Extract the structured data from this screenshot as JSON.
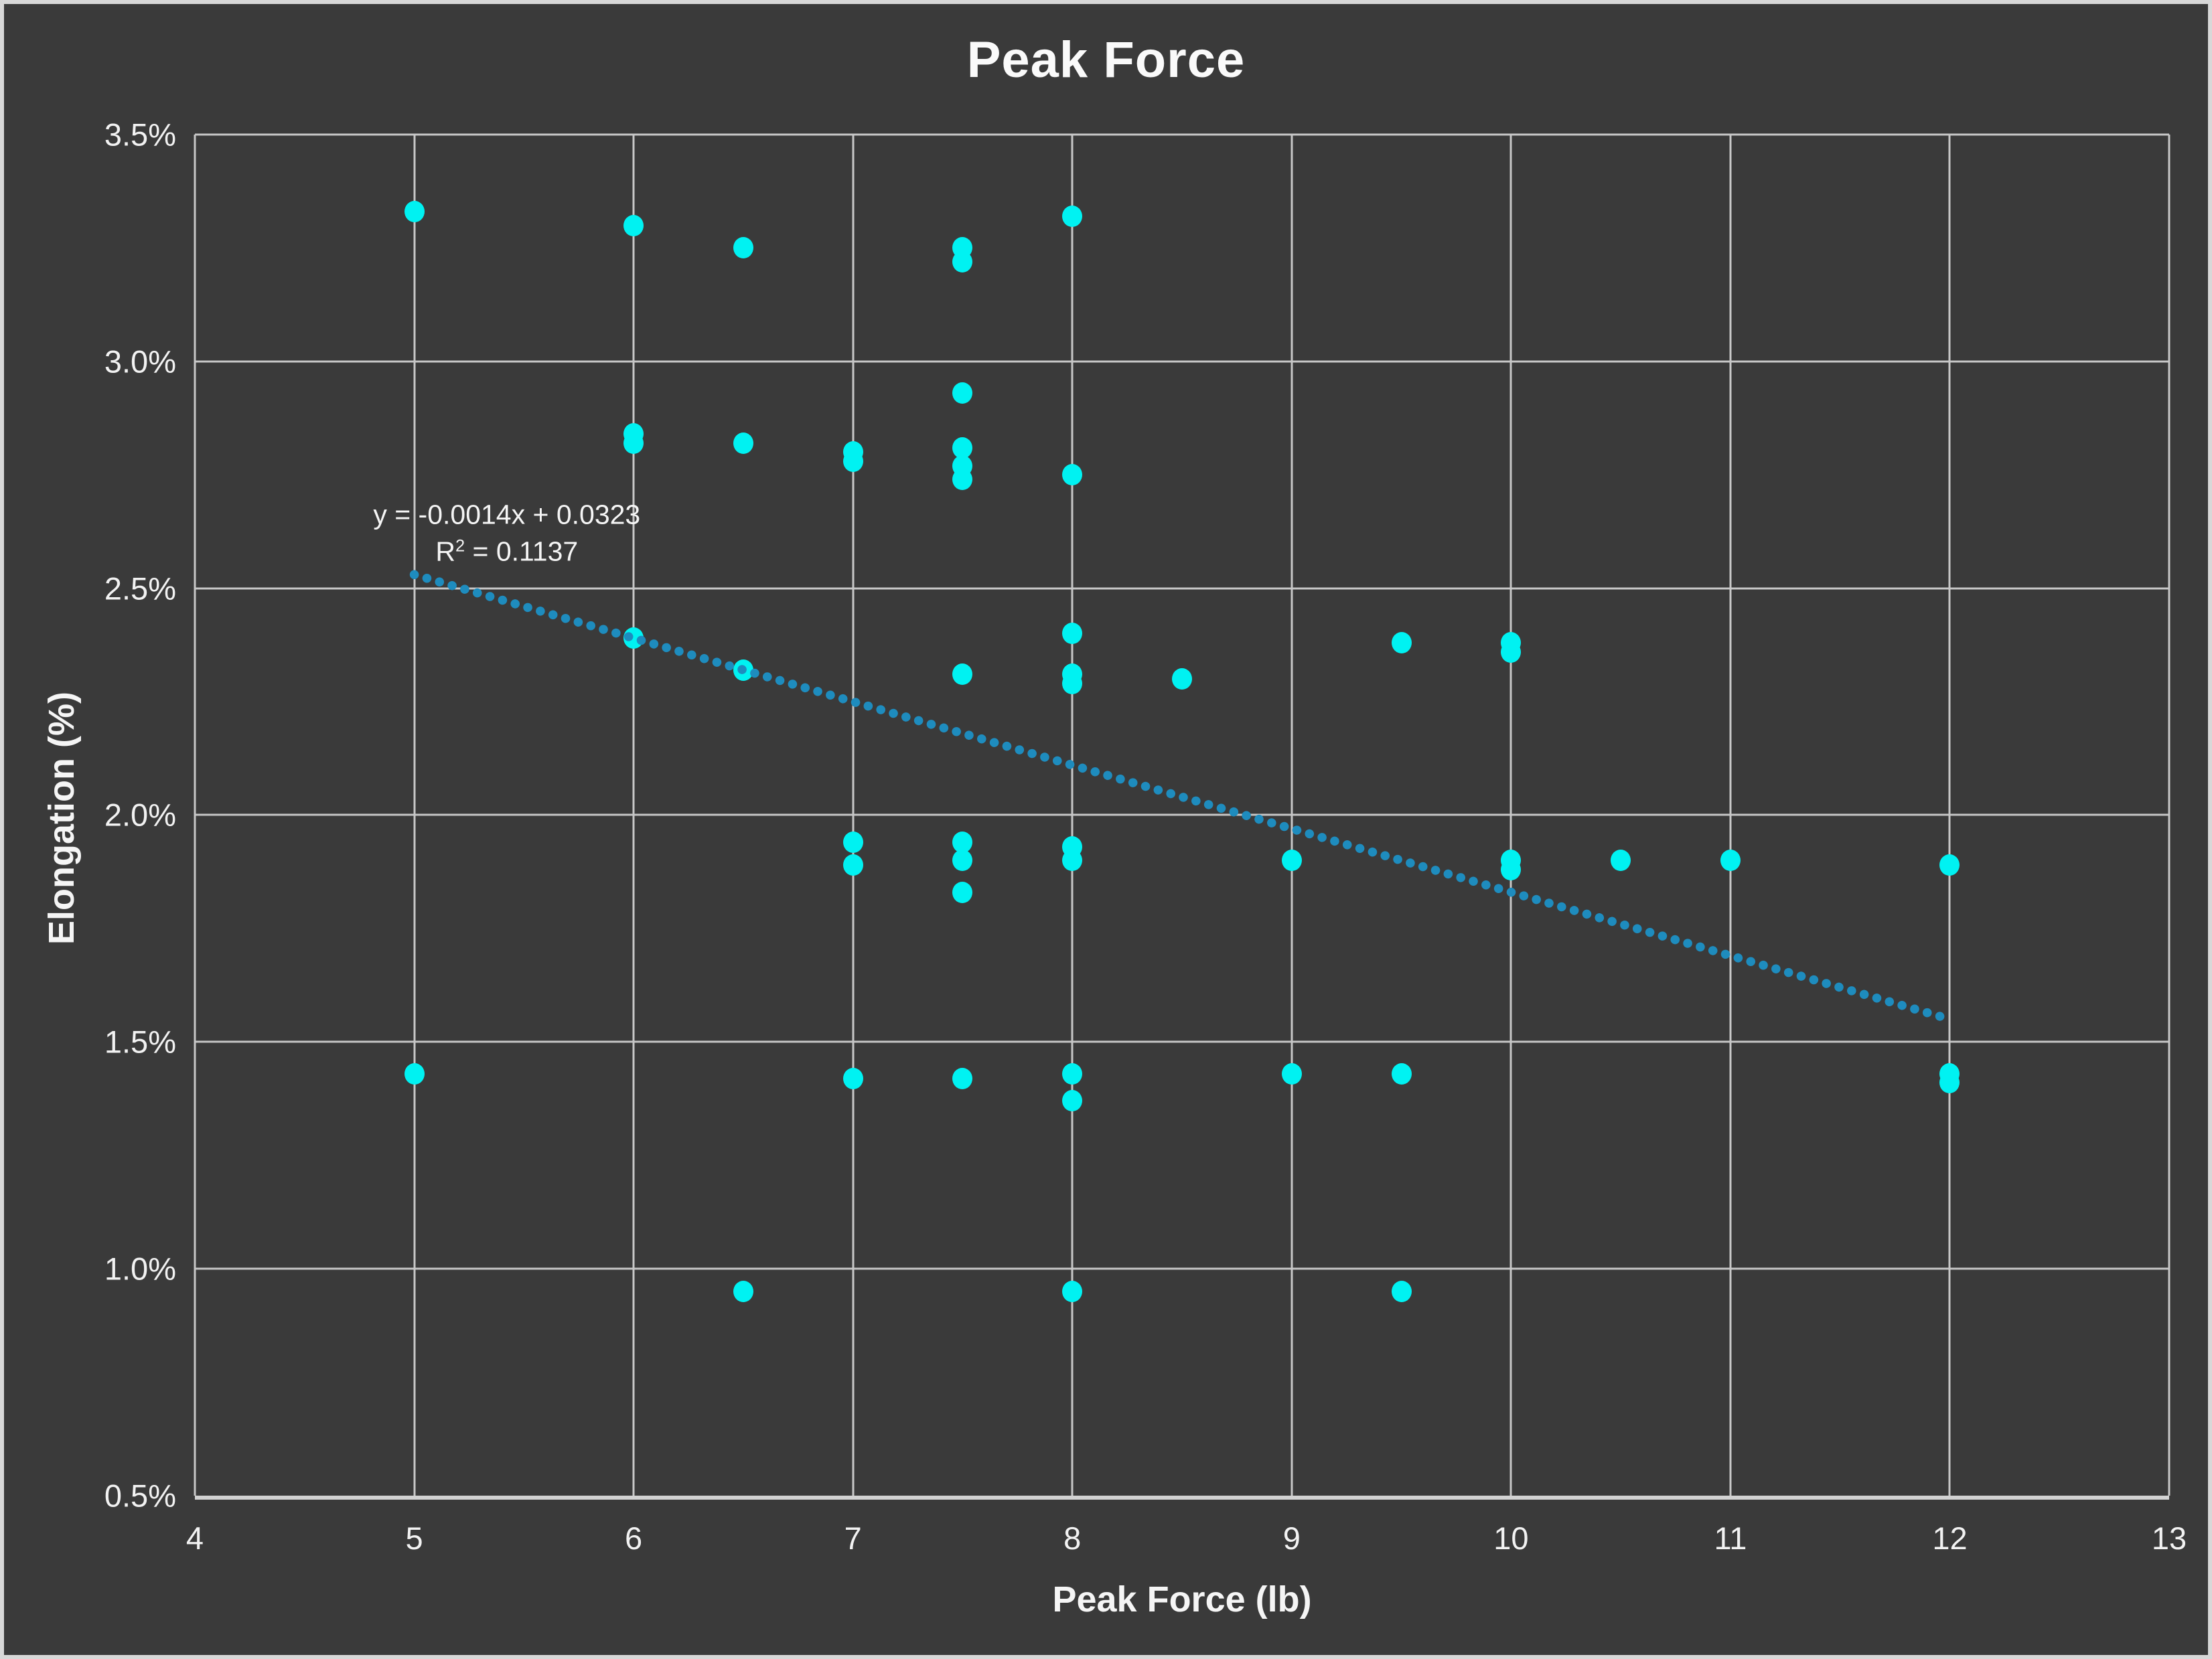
{
  "colors": {
    "background": "#3a3a3a",
    "frame_border": "#d8d8d8",
    "gridline": "#c7c7c7",
    "axis_line": "#d2d2d2",
    "point": "#00f2f2",
    "trendline": "#1e8cbe",
    "text": "#f2f2f2"
  },
  "chart_data": {
    "type": "scatter",
    "title": "Peak Force",
    "xlabel": "Peak Force (lb)",
    "ylabel": "Elongation (%)",
    "xlim": [
      4,
      13
    ],
    "ylim": [
      0.005,
      0.035
    ],
    "x_ticks": [
      4,
      5,
      6,
      7,
      8,
      9,
      10,
      11,
      12,
      13
    ],
    "y_ticks": [
      {
        "value": 0.035,
        "label": "3.5%"
      },
      {
        "value": 0.03,
        "label": "3.0%"
      },
      {
        "value": 0.025,
        "label": "2.5%"
      },
      {
        "value": 0.02,
        "label": "2.0%"
      },
      {
        "value": 0.015,
        "label": "1.5%"
      },
      {
        "value": 0.01,
        "label": "1.0%"
      },
      {
        "value": 0.005,
        "label": "0.5%"
      }
    ],
    "grid": true,
    "legend": "none",
    "points": [
      [
        5,
        0.0333
      ],
      [
        6,
        0.033
      ],
      [
        6.5,
        0.0325
      ],
      [
        7.5,
        0.0325
      ],
      [
        7.5,
        0.0322
      ],
      [
        8,
        0.0332
      ],
      [
        6,
        0.0284
      ],
      [
        6,
        0.0282
      ],
      [
        6.5,
        0.0282
      ],
      [
        7,
        0.028
      ],
      [
        7,
        0.0278
      ],
      [
        7.5,
        0.0293
      ],
      [
        7.5,
        0.0281
      ],
      [
        7.5,
        0.0277
      ],
      [
        7.5,
        0.0274
      ],
      [
        8,
        0.0275
      ],
      [
        6,
        0.0239
      ],
      [
        6.5,
        0.0232
      ],
      [
        7.5,
        0.0231
      ],
      [
        8,
        0.024
      ],
      [
        8,
        0.0231
      ],
      [
        8,
        0.0229
      ],
      [
        8.5,
        0.023
      ],
      [
        9.5,
        0.0238
      ],
      [
        10,
        0.0238
      ],
      [
        10,
        0.0236
      ],
      [
        7,
        0.0194
      ],
      [
        7,
        0.0189
      ],
      [
        7.5,
        0.0194
      ],
      [
        7.5,
        0.019
      ],
      [
        7.5,
        0.0183
      ],
      [
        8,
        0.0193
      ],
      [
        8,
        0.019
      ],
      [
        9,
        0.019
      ],
      [
        10,
        0.019
      ],
      [
        10,
        0.0188
      ],
      [
        10.5,
        0.019
      ],
      [
        11,
        0.019
      ],
      [
        12,
        0.0189
      ],
      [
        5,
        0.0143
      ],
      [
        7,
        0.0142
      ],
      [
        7.5,
        0.0142
      ],
      [
        8,
        0.0143
      ],
      [
        8,
        0.0137
      ],
      [
        9,
        0.0143
      ],
      [
        9.5,
        0.0143
      ],
      [
        12,
        0.0143
      ],
      [
        12,
        0.0141
      ],
      [
        6.5,
        0.0095
      ],
      [
        8,
        0.0095
      ],
      [
        9.5,
        0.0095
      ]
    ],
    "trendline": {
      "equation": "y = -0.0014x + 0.0323",
      "r2_base": "R",
      "r2_sup": "2",
      "r2_rest": " = 0.1137",
      "slope": -0.0014,
      "intercept": 0.0323,
      "x_start": 5,
      "x_end": 12,
      "style": "dotted"
    }
  }
}
